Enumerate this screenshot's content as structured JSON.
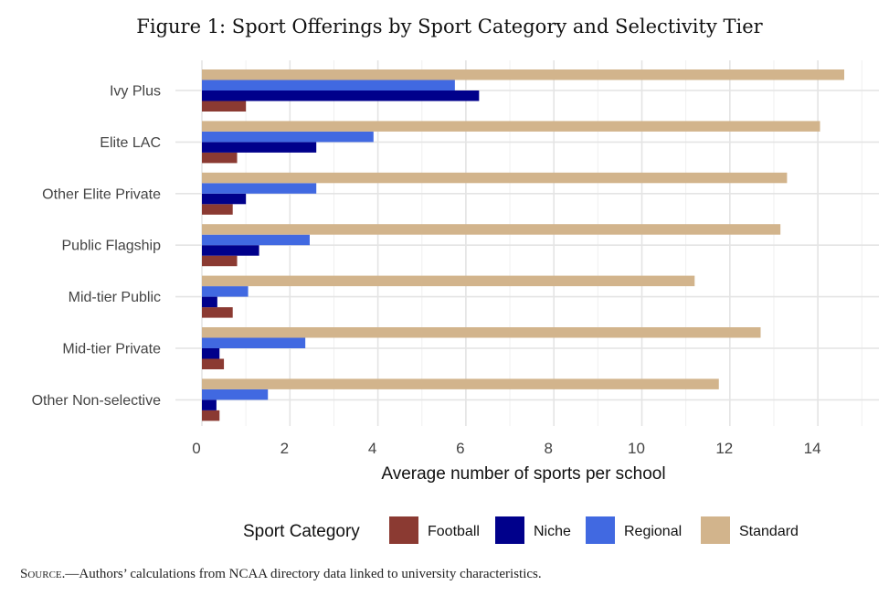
{
  "chart_data": {
    "type": "bar",
    "orientation": "horizontal",
    "title": "Figure 1: Sport Offerings by Sport Category and Selectivity Tier",
    "xlabel": "Average number of sports per school",
    "ylabel": "",
    "xlim": [
      0,
      15.3
    ],
    "xticks": [
      0,
      2,
      4,
      6,
      8,
      10,
      12,
      14
    ],
    "grid": true,
    "categories": [
      "Ivy Plus",
      "Elite LAC",
      "Other Elite Private",
      "Public Flagship",
      "Mid-tier Public",
      "Mid-tier Private",
      "Other Non-selective"
    ],
    "series": [
      {
        "name": "Football",
        "color": "#8B3A32",
        "values": [
          1.0,
          0.8,
          0.7,
          0.8,
          0.7,
          0.5,
          0.4
        ]
      },
      {
        "name": "Niche",
        "color": "#00008B",
        "values": [
          6.3,
          2.6,
          1.0,
          1.3,
          0.35,
          0.4,
          0.33
        ]
      },
      {
        "name": "Regional",
        "color": "#4169E1",
        "values": [
          5.75,
          3.9,
          2.6,
          2.45,
          1.05,
          2.35,
          1.5
        ]
      },
      {
        "name": "Standard",
        "color": "#D2B48C",
        "values": [
          14.6,
          14.05,
          13.3,
          13.15,
          11.2,
          12.7,
          11.75
        ]
      }
    ],
    "legend": {
      "title": "Sport Category",
      "position": "bottom"
    }
  },
  "source": {
    "label": "Source.",
    "text": "—Authors’ calculations from NCAA directory data linked to university characteristics."
  }
}
